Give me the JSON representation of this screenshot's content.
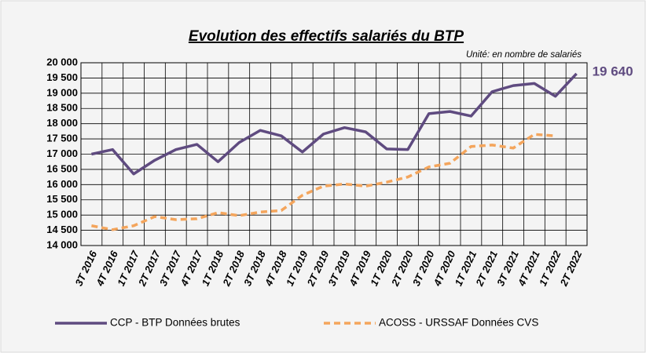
{
  "chart_data": {
    "type": "line",
    "title": "Evolution des effectifs salariés du BTP",
    "subtitle": "Unité: en nombre de salariés",
    "categories": [
      "3T 2016",
      "4T 2016",
      "1T 2017",
      "2T 2017",
      "3T 2017",
      "4T 2017",
      "1T 2018",
      "2T 2018",
      "3T 2018",
      "4T 2018",
      "1T 2019",
      "2T 2019",
      "3T 2019",
      "4T 2019",
      "1T 2020",
      "2T 2020",
      "3T 2020",
      "4T 2020",
      "1T 2021",
      "2T 2021",
      "3T 2021",
      "4T 2021",
      "1T 2022",
      "2T 2022"
    ],
    "series": [
      {
        "name": "CCP - BTP Données brutes",
        "color": "#5f4b80",
        "dashed": false,
        "values": [
          17000,
          17150,
          16350,
          16800,
          17150,
          17320,
          16750,
          17380,
          17780,
          17600,
          17070,
          17660,
          17870,
          17730,
          17170,
          17150,
          18330,
          18400,
          18250,
          19050,
          19250,
          19320,
          18900,
          19640
        ],
        "value_labels": [
          null,
          null,
          null,
          null,
          null,
          null,
          null,
          null,
          null,
          null,
          null,
          null,
          null,
          null,
          null,
          null,
          null,
          null,
          null,
          null,
          null,
          null,
          null,
          "19 640"
        ]
      },
      {
        "name": "ACOSS - URSSAF Données CVS",
        "color": "#f4a55c",
        "dashed": true,
        "values": [
          14650,
          14520,
          14650,
          14950,
          14850,
          14880,
          15080,
          14980,
          15100,
          15150,
          15650,
          15950,
          16020,
          15950,
          16080,
          16250,
          16580,
          16700,
          17250,
          17300,
          17200,
          17650,
          17600,
          null
        ]
      }
    ],
    "ylim": [
      14000,
      20000
    ],
    "yticks": [
      {
        "value": 14000,
        "label": "14 000"
      },
      {
        "value": 14500,
        "label": "14 500"
      },
      {
        "value": 15000,
        "label": "15 000"
      },
      {
        "value": 15500,
        "label": "15 500"
      },
      {
        "value": 16000,
        "label": "16 000"
      },
      {
        "value": 16500,
        "label": "16 500"
      },
      {
        "value": 17000,
        "label": "17 000"
      },
      {
        "value": 17500,
        "label": "17 500"
      },
      {
        "value": 18000,
        "label": "18 000"
      },
      {
        "value": 18500,
        "label": "18 500"
      },
      {
        "value": 19000,
        "label": "19 000"
      },
      {
        "value": 19500,
        "label": "19 500"
      },
      {
        "value": 20000,
        "label": "20 000"
      }
    ],
    "grid": true,
    "legend": "bottom"
  }
}
